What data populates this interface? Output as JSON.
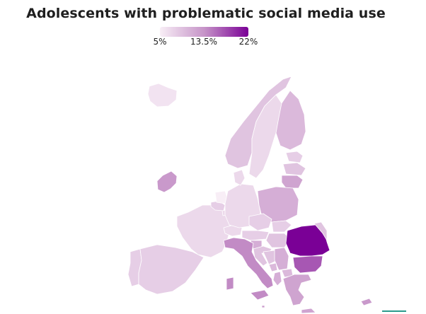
{
  "title": "Adolescents with problematic social media use",
  "legend": {
    "min_label": "5%",
    "mid_label": "13.5%",
    "max_label": "22%",
    "min_value": 5,
    "max_value": 22,
    "colors": [
      "#f8eef6",
      "#c694c8",
      "#7a0096"
    ]
  },
  "map": {
    "type": "choropleth",
    "region": "Europe",
    "values": {
      "Iceland": 6,
      "Ireland": 13,
      "United Kingdom": null,
      "Portugal": 8,
      "Spain": 8,
      "France": 7,
      "Belgium": 8,
      "Netherlands": 5,
      "Luxembourg": 7,
      "Germany": 7,
      "Denmark": 7,
      "Norway": 9,
      "Sweden": 7,
      "Finland": 10,
      "Estonia": 8,
      "Latvia": 9,
      "Lithuania": 12,
      "Poland": 11,
      "Czechia": 8,
      "Slovakia": 8,
      "Austria": 8,
      "Switzerland": 7,
      "Italy": 14,
      "Slovenia": 11,
      "Croatia": 9,
      "Hungary": 9,
      "Serbia": 11,
      "Bosnia": 9,
      "Montenegro": 10,
      "Albania": 11,
      "North Macedonia": 10,
      "Romania": 22,
      "Moldova": 9,
      "Bulgaria": 17,
      "Greece": 12,
      "Malta": 13,
      "Cyprus": 13
    }
  }
}
